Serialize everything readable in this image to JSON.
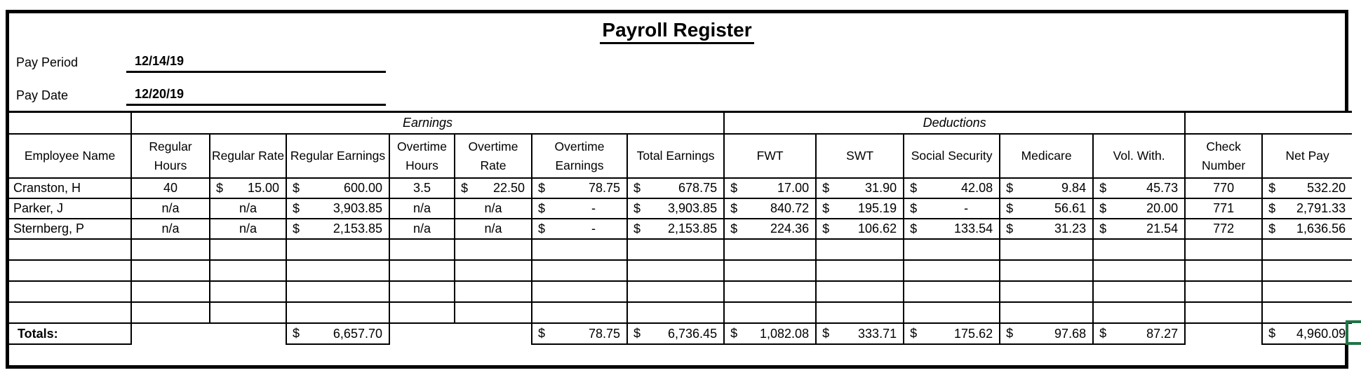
{
  "title": "Payroll Register",
  "fields": {
    "pay_period": {
      "label": "Pay Period",
      "value": "12/14/19"
    },
    "pay_date": {
      "label": "Pay Date",
      "value": "12/20/19"
    }
  },
  "table": {
    "group_headers": {
      "earnings": "Earnings",
      "deductions": "Deductions"
    },
    "columns": [
      "Employee Name",
      "Regular Hours",
      "Regular Rate",
      "Regular Earnings",
      "Overtime Hours",
      "Overtime Rate",
      "Overtime Earnings",
      "Total Earnings",
      "FWT",
      "SWT",
      "Social Security",
      "Medicare",
      "Vol. With.",
      "Check Number",
      "Net Pay"
    ],
    "employees": [
      {
        "name": "Cranston, H",
        "cells": [
          "40",
          "$15.00",
          "$600.00",
          "3.5",
          "$22.50",
          "$78.75",
          "$678.75",
          "$17.00",
          "$31.90",
          "$42.08",
          "$9.84",
          "$45.73",
          "770",
          "$532.20"
        ]
      },
      {
        "name": "Parker, J",
        "cells": [
          "n/a",
          "n/a",
          "$3,903.85",
          "n/a",
          "n/a",
          "$-",
          "$3,903.85",
          "$840.72",
          "$195.19",
          "$-",
          "$56.61",
          "$20.00",
          "771",
          "$2,791.33"
        ]
      },
      {
        "name": "Sternberg, P",
        "cells": [
          "n/a",
          "n/a",
          "$2,153.85",
          "n/a",
          "n/a",
          "$-",
          "$2,153.85",
          "$224.36",
          "$106.62",
          "$133.54",
          "$31.23",
          "$21.54",
          "772",
          "$1,636.56"
        ]
      }
    ],
    "empty_row_count": 4,
    "totals": {
      "label": "Totals:",
      "cells": [
        "",
        "",
        "$6,657.70",
        "",
        "",
        "$78.75",
        "$6,736.45",
        "$1,082.08",
        "$333.71",
        "$175.62",
        "$97.68",
        "$87.27",
        "",
        "$4,960.09"
      ]
    }
  },
  "selection": {
    "color": "#217346"
  }
}
